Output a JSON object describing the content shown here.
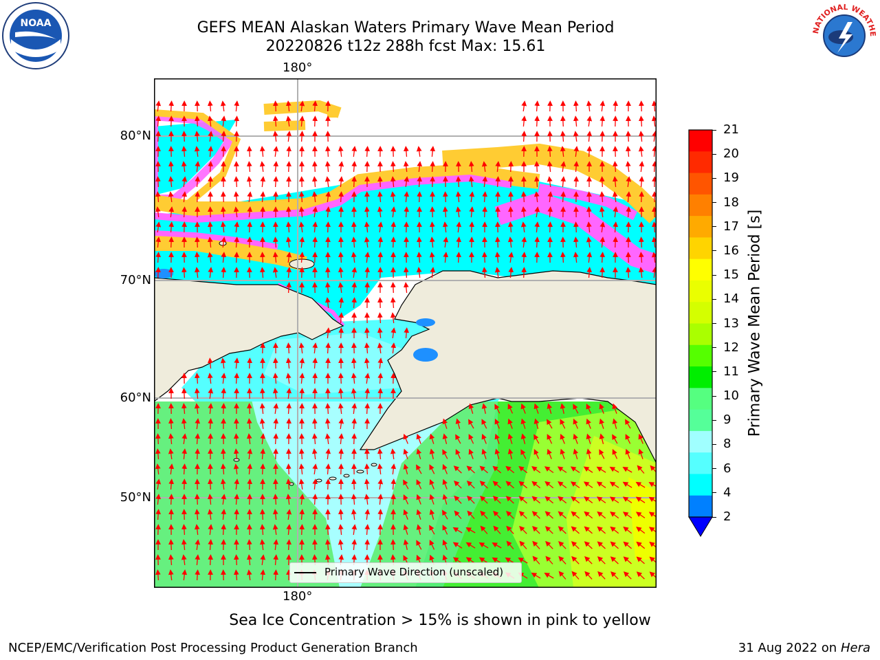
{
  "title": {
    "line1": "GEFS MEAN Alaskan Waters Primary Wave Mean Period",
    "line2": "20220826 t12z 288h fcst   Max: 15.61"
  },
  "logos": {
    "noaa": {
      "icon": "noaa-logo-icon",
      "text": "NOAA"
    },
    "nws": {
      "icon": "nws-logo-icon",
      "text": "NATIONAL WEATHER SERVICE"
    }
  },
  "map": {
    "lon_labels": {
      "top": "180°",
      "bottom": "180°"
    },
    "lat_labels": [
      "80°N",
      "70°N",
      "60°N",
      "50°N"
    ],
    "legend": {
      "label": "Primary Wave Direction (unscaled)"
    },
    "colors": {
      "land": "#efecdc",
      "arrow": "#ff0000",
      "grid": "#b0b0b0"
    }
  },
  "colorbar": {
    "label": "Primary Wave Mean Period [s]",
    "ticks": [
      "21",
      "20",
      "19",
      "18",
      "17",
      "16",
      "15",
      "14",
      "13",
      "12",
      "11",
      "10",
      "9",
      "8",
      "6",
      "4",
      "2"
    ],
    "colors": [
      "#ff0000",
      "#ff2a00",
      "#ff5500",
      "#ff8000",
      "#ffaa00",
      "#ffd400",
      "#ffff00",
      "#eaff00",
      "#d4ff00",
      "#aaff00",
      "#55ff00",
      "#00ee00",
      "#55ff80",
      "#55ff99",
      "#a0ffff",
      "#55ffff",
      "#00ffff",
      "#0080ff"
    ],
    "under_color": "#0000ff"
  },
  "note": "Sea Ice Concentration > 15% is shown in pink to yellow",
  "footer": {
    "left": "NCEP/EMC/Verification Post Processing Product Generation Branch",
    "date": "31 Aug 2022 on",
    "machine": "Hera"
  }
}
